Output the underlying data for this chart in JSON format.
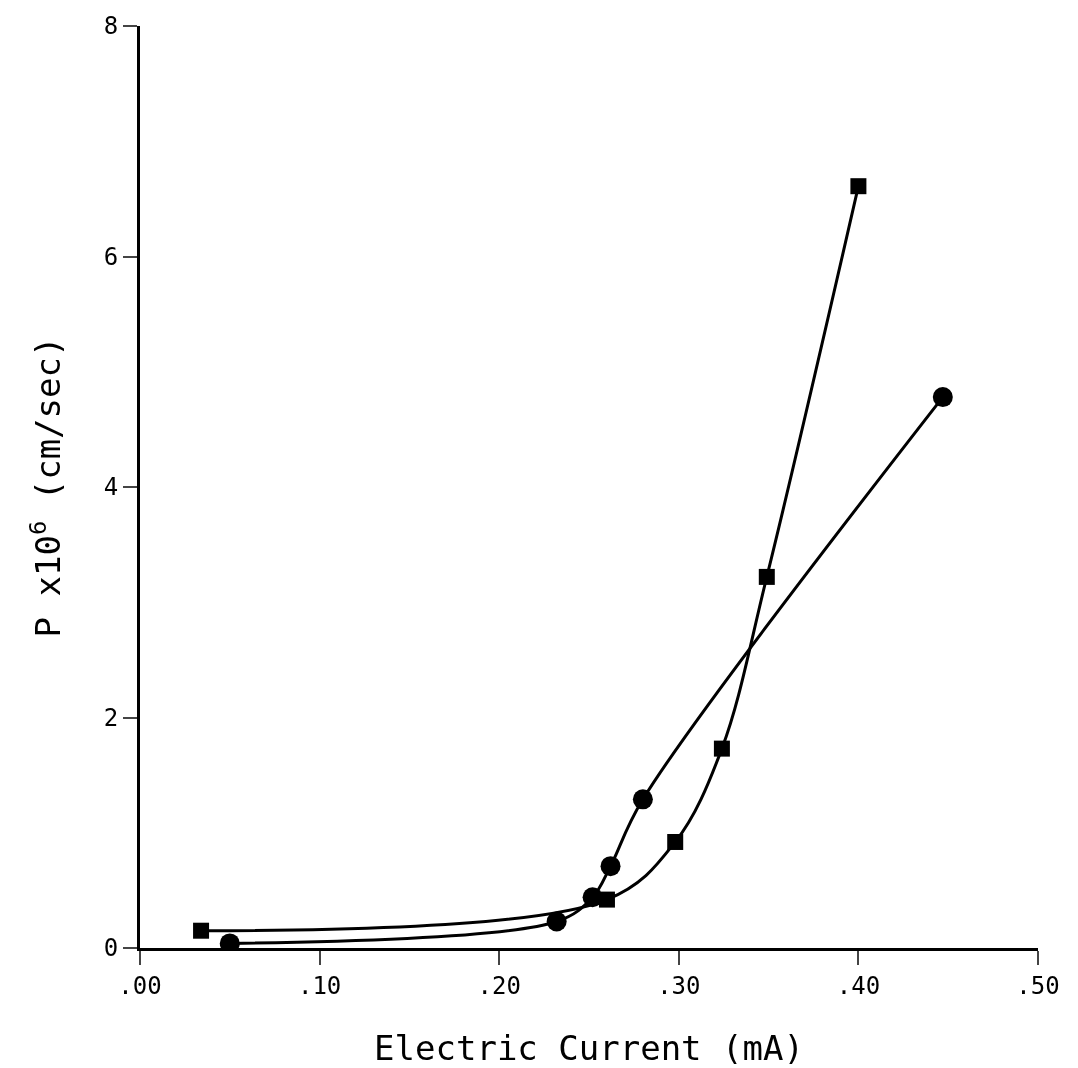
{
  "chart_data": {
    "type": "line",
    "xlabel": "Electric Current (mA)",
    "ylabel": "P x10$^{6}$ (cm/sec)",
    "xlim": [
      0,
      0.5
    ],
    "xticks": [
      {
        "value": 0,
        "label": ".00"
      },
      {
        "value": 0.1,
        "label": ".10"
      },
      {
        "value": 0.2,
        "label": ".20"
      },
      {
        "value": 0.3,
        "label": ".30"
      },
      {
        "value": 0.4,
        "label": ".40"
      },
      {
        "value": 0.5,
        "label": ".50"
      }
    ],
    "ylim": [
      0,
      8
    ],
    "yticks": [
      0,
      2,
      4,
      6,
      8
    ],
    "grid": false,
    "series": [
      {
        "color": "#000000",
        "marker": "square",
        "x": [
          0.034,
          0.26,
          0.298,
          0.324,
          0.349,
          0.4
        ],
        "values": [
          0.15,
          0.42,
          0.92,
          1.73,
          3.22,
          6.61
        ]
      },
      {
        "color": "#000000",
        "marker": "circle",
        "x": [
          0.05,
          0.232,
          0.252,
          0.262,
          0.28,
          0.447
        ],
        "values": [
          0.04,
          0.23,
          0.44,
          0.71,
          1.29,
          4.78
        ]
      }
    ]
  }
}
